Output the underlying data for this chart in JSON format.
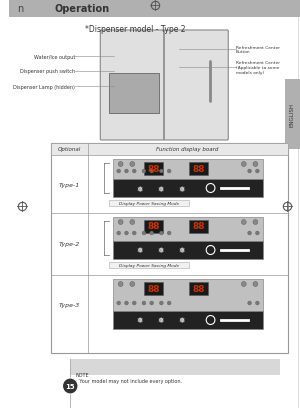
{
  "bg_color": "#f5f5f5",
  "page_bg": "#ffffff",
  "header_bg": "#b0b0b0",
  "header_text": "Operation",
  "header_left": "n",
  "english_sidebar": "ENGLISH",
  "dispenser_title": "*Dispenser model - Type 2",
  "fridge_labels_left": [
    "Water/Ice output",
    "Dispenser push switch",
    "Dispenser Lamp (hidden)"
  ],
  "fridge_labels_right": [
    "Refreshment Center\nButton",
    "Refreshment Center\n(Applicable to some\nmodels only)"
  ],
  "table_header_col1": "Optional",
  "table_header_col2": "Function display board",
  "type_labels": [
    "Type-1",
    "Type-2",
    "Type-3"
  ],
  "display_power_saving": "Display Power Saving Mode",
  "note_bg": "#d8d8d8",
  "note_text": "NOTE\n• Your model may not include every option.",
  "page_number": "15",
  "panel_bg_light": "#c0c0c0",
  "panel_bg_dark": "#222222",
  "crosshair_color": "#555555"
}
